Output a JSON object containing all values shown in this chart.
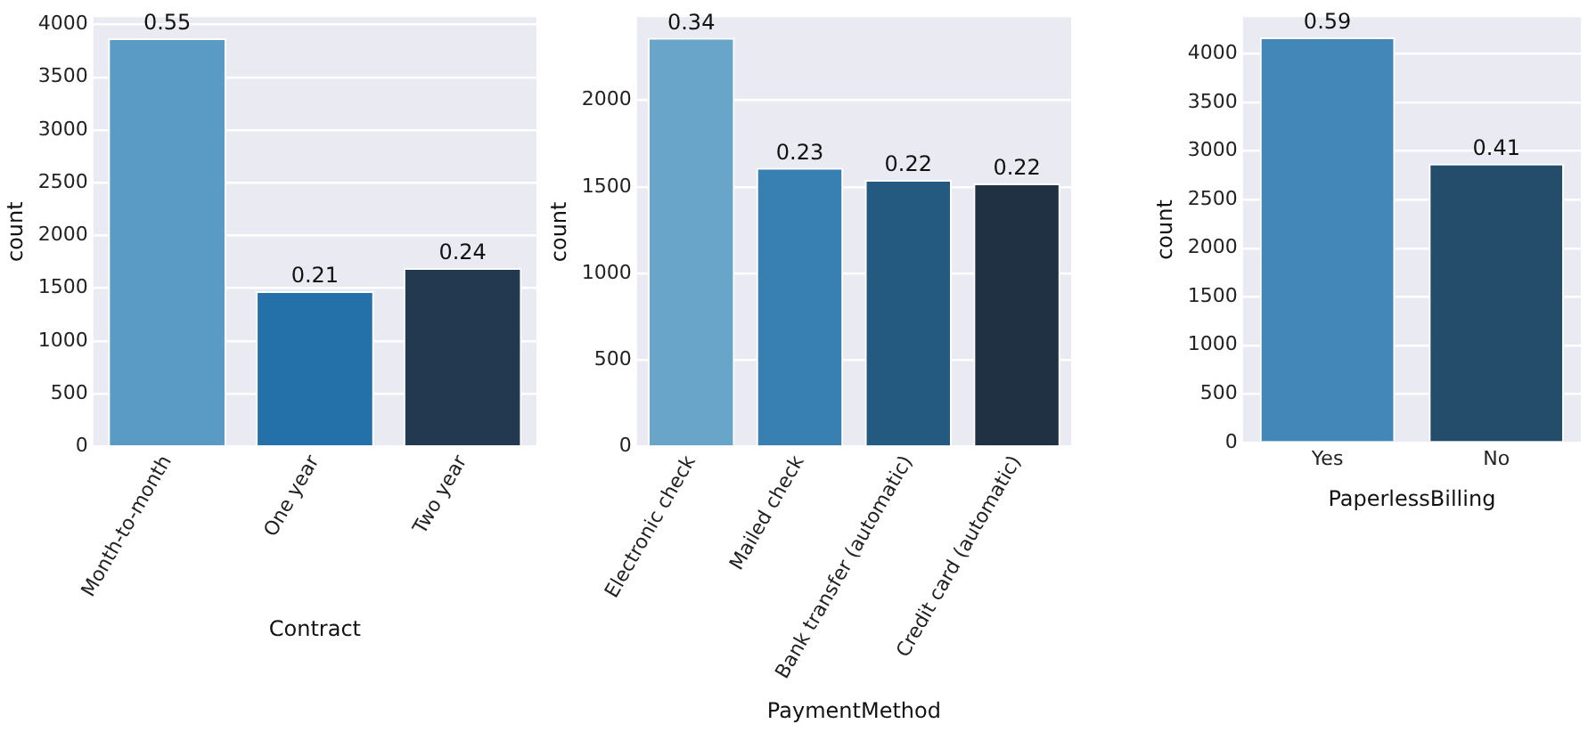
{
  "chart_data": [
    {
      "type": "bar",
      "xlabel": "Contract",
      "ylabel": "count",
      "categories": [
        "Month-to-month",
        "One year",
        "Two year"
      ],
      "values": [
        3870,
        1470,
        1690
      ],
      "colors": [
        "#5a9bc6",
        "#2470a8",
        "#22394f"
      ],
      "annotations": [
        {
          "text": "0.55",
          "x": "Month-to-month",
          "y": 3870
        },
        {
          "text": "0.21",
          "x": "One year",
          "y": 1470
        },
        {
          "text": "0.24",
          "x": "Two year",
          "y": 1690
        }
      ],
      "ylim": [
        0,
        4070
      ],
      "yticks": [
        0,
        500,
        1000,
        1500,
        2000,
        2500,
        3000,
        3500,
        4000
      ],
      "grid": "y"
    },
    {
      "type": "bar",
      "xlabel": "PaymentMethod",
      "ylabel": "count",
      "categories": [
        "Electronic check",
        "Mailed check",
        "Bank transfer (automatic)",
        "Credit card (automatic)"
      ],
      "values": [
        2360,
        1610,
        1540,
        1520
      ],
      "colors": [
        "#69a5c8",
        "#387fb2",
        "#255a80",
        "#1f3142"
      ],
      "annotations": [
        {
          "text": "0.34",
          "x": "Electronic check",
          "y": 2360
        },
        {
          "text": "0.23",
          "x": "Mailed check",
          "y": 1610
        },
        {
          "text": "0.22",
          "x": "Bank transfer (automatic)",
          "y": 1540
        },
        {
          "text": "0.22",
          "x": "Credit card (automatic)",
          "y": 1520
        }
      ],
      "ylim": [
        0,
        2480
      ],
      "yticks": [
        0,
        500,
        1000,
        1500,
        2000
      ],
      "grid": "y"
    },
    {
      "type": "bar",
      "xlabel": "PaperlessBilling",
      "ylabel": "count",
      "categories": [
        "Yes",
        "No"
      ],
      "values": [
        4170,
        2870
      ],
      "colors": [
        "#4287b8",
        "#244d6b"
      ],
      "annotations": [
        {
          "text": "0.59",
          "x": "Yes",
          "y": 4170
        },
        {
          "text": "0.41",
          "x": "No",
          "y": 2870
        }
      ],
      "ylim": [
        0,
        4380
      ],
      "yticks": [
        0,
        500,
        1000,
        1500,
        2000,
        2500,
        3000,
        3500,
        4000
      ],
      "grid": "y"
    }
  ]
}
